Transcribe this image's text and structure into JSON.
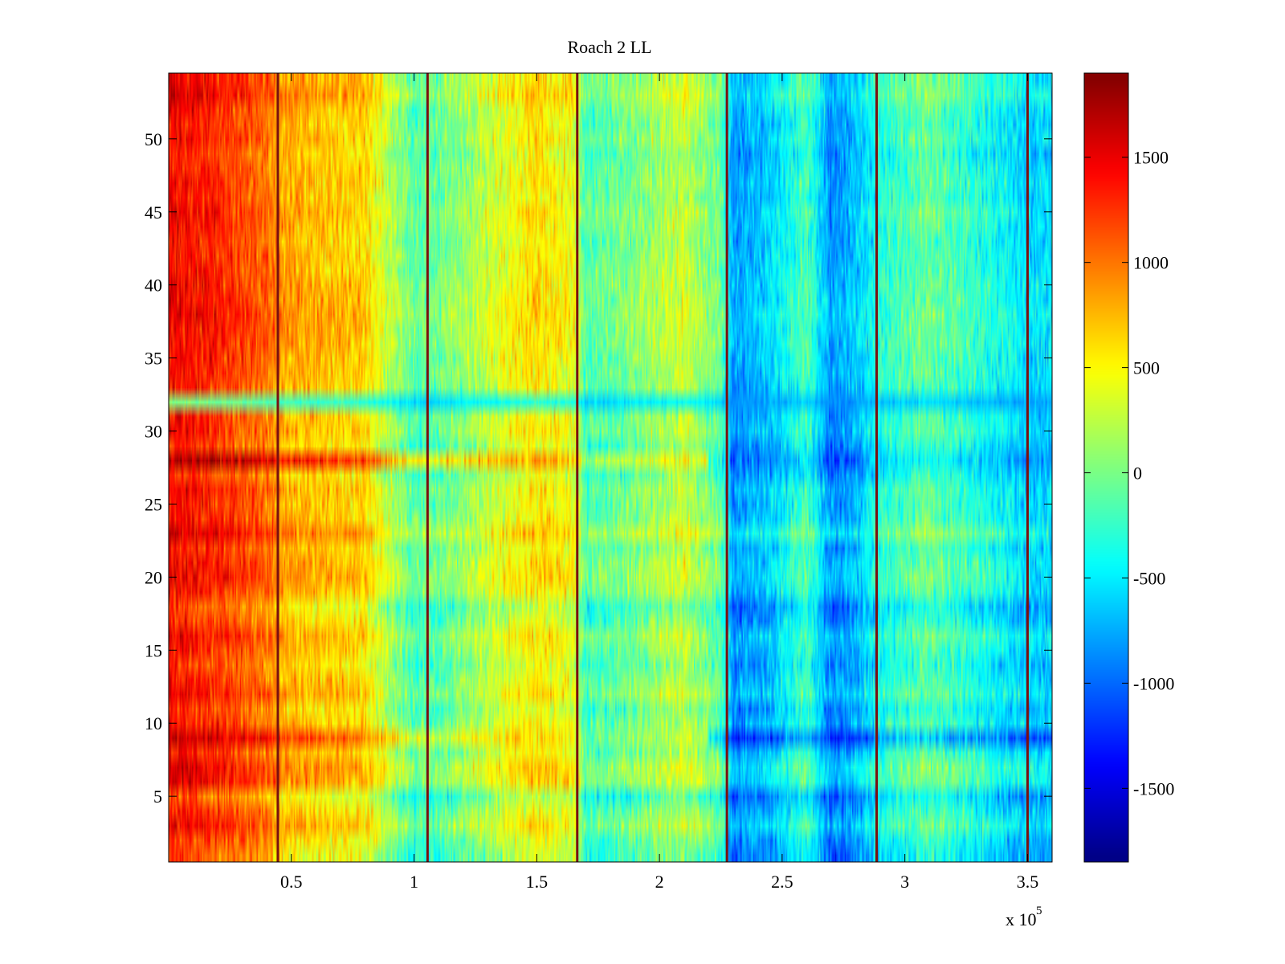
{
  "chart_data": {
    "type": "heatmap",
    "title": "Roach 2 LL",
    "xlabel": "",
    "ylabel": "",
    "x_multiplier_label": "x 10",
    "x_multiplier_exponent": "5",
    "xlim": [
      0,
      3.6
    ],
    "ylim": [
      0.5,
      54.5
    ],
    "rows": 54,
    "columns": 720,
    "x_ticks": [
      0.5,
      1,
      1.5,
      2,
      2.5,
      3,
      3.5
    ],
    "x_tick_labels": [
      "0.5",
      "1",
      "1.5",
      "2",
      "2.5",
      "3",
      "3.5"
    ],
    "y_ticks": [
      5,
      10,
      15,
      20,
      25,
      30,
      35,
      40,
      45,
      50
    ],
    "y_tick_labels": [
      "5",
      "10",
      "15",
      "20",
      "25",
      "30",
      "35",
      "40",
      "45",
      "50"
    ],
    "colorbar": {
      "colormap": "jet",
      "range": [
        -1850,
        1900
      ],
      "ticks": [
        -1500,
        -1000,
        -500,
        0,
        500,
        1000,
        1500
      ],
      "tick_labels": [
        "-1500",
        "-1000",
        "-500",
        "0",
        "500",
        "1000",
        "1500"
      ]
    },
    "segment_boundaries_x": [
      0.445,
      1.055,
      1.665,
      2.275,
      2.885,
      3.5
    ],
    "column_profile": [
      {
        "x": 0.0,
        "value": 1300
      },
      {
        "x": 0.2,
        "value": 1150
      },
      {
        "x": 0.4,
        "value": 900
      },
      {
        "x": 0.45,
        "value": 700
      },
      {
        "x": 0.6,
        "value": 600
      },
      {
        "x": 0.8,
        "value": 500
      },
      {
        "x": 0.9,
        "value": 100
      },
      {
        "x": 1.0,
        "value": -250
      },
      {
        "x": 1.1,
        "value": -200
      },
      {
        "x": 1.3,
        "value": 150
      },
      {
        "x": 1.5,
        "value": 450
      },
      {
        "x": 1.65,
        "value": 300
      },
      {
        "x": 1.7,
        "value": -300
      },
      {
        "x": 1.9,
        "value": -100
      },
      {
        "x": 2.1,
        "value": 150
      },
      {
        "x": 2.25,
        "value": -200
      },
      {
        "x": 2.3,
        "value": -950
      },
      {
        "x": 2.45,
        "value": -750
      },
      {
        "x": 2.6,
        "value": -300
      },
      {
        "x": 2.7,
        "value": -1000
      },
      {
        "x": 2.8,
        "value": -800
      },
      {
        "x": 2.9,
        "value": -450
      },
      {
        "x": 3.1,
        "value": -200
      },
      {
        "x": 3.3,
        "value": -450
      },
      {
        "x": 3.5,
        "value": -700
      },
      {
        "x": 3.6,
        "value": -700
      }
    ],
    "row_offsets": [
      {
        "row": 1,
        "value": -100
      },
      {
        "row": 2,
        "value": 0
      },
      {
        "row": 3,
        "value": 200
      },
      {
        "row": 4,
        "value": 50
      },
      {
        "row": 5,
        "value": -150
      },
      {
        "row": 6,
        "value": 250
      },
      {
        "row": 7,
        "value": 300
      },
      {
        "row": 8,
        "value": 100
      },
      {
        "row": 9,
        "value": 200
      },
      {
        "row": 10,
        "value": 100
      },
      {
        "row": 11,
        "value": 0
      },
      {
        "row": 12,
        "value": 200
      },
      {
        "row": 13,
        "value": 100
      },
      {
        "row": 14,
        "value": 0
      },
      {
        "row": 15,
        "value": 100
      },
      {
        "row": 16,
        "value": 200
      },
      {
        "row": 17,
        "value": 0
      },
      {
        "row": 18,
        "value": -100
      },
      {
        "row": 19,
        "value": 150
      },
      {
        "row": 20,
        "value": 250
      },
      {
        "row": 21,
        "value": 200
      },
      {
        "row": 22,
        "value": 100
      },
      {
        "row": 23,
        "value": 350
      },
      {
        "row": 24,
        "value": 150
      },
      {
        "row": 25,
        "value": 100
      },
      {
        "row": 26,
        "value": 150
      },
      {
        "row": 27,
        "value": 0
      },
      {
        "row": 28,
        "value": 400
      },
      {
        "row": 29,
        "value": 0
      },
      {
        "row": 30,
        "value": 150
      },
      {
        "row": 31,
        "value": 100
      },
      {
        "row": 32,
        "value": -200
      },
      {
        "row": 33,
        "value": 100
      },
      {
        "row": 34,
        "value": 150
      },
      {
        "row": 35,
        "value": 150
      },
      {
        "row": 36,
        "value": 200
      },
      {
        "row": 37,
        "value": 200
      },
      {
        "row": 38,
        "value": 250
      },
      {
        "row": 39,
        "value": 200
      },
      {
        "row": 40,
        "value": 200
      },
      {
        "row": 41,
        "value": 150
      },
      {
        "row": 42,
        "value": 150
      },
      {
        "row": 43,
        "value": 100
      },
      {
        "row": 44,
        "value": 150
      },
      {
        "row": 45,
        "value": 200
      },
      {
        "row": 46,
        "value": 100
      },
      {
        "row": 47,
        "value": 150
      },
      {
        "row": 48,
        "value": 100
      },
      {
        "row": 49,
        "value": 50
      },
      {
        "row": 50,
        "value": 150
      },
      {
        "row": 51,
        "value": 100
      },
      {
        "row": 52,
        "value": 150
      },
      {
        "row": 53,
        "value": 300
      },
      {
        "row": 54,
        "value": 200
      }
    ],
    "special_rows": [
      {
        "row": 9,
        "value": 1600,
        "note": "dark red on left, deep blue on right"
      },
      {
        "row": 28,
        "value": 1500,
        "note": "dark red on left, blue on right"
      },
      {
        "row": 32,
        "value": -400,
        "note": "cyan band with orange patches"
      }
    ]
  }
}
